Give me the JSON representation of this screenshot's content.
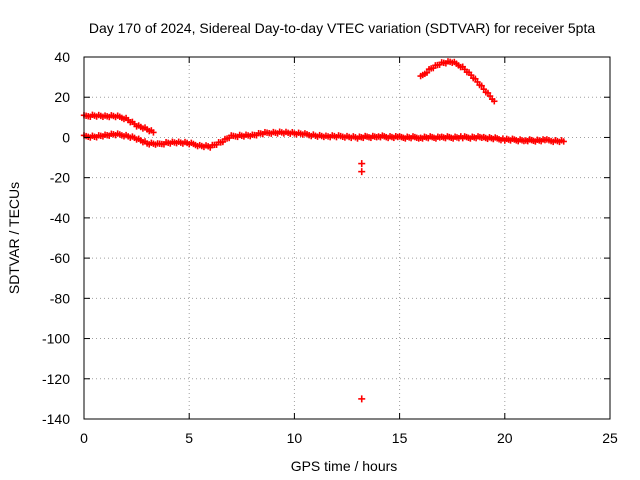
{
  "chart_data": {
    "type": "scatter",
    "title": "Day 170 of 2024, Sidereal Day-to-day VTEC variation (SDTVAR) for receiver 5pta",
    "xlabel": "GPS time / hours",
    "ylabel": "SDTVAR / TECUs",
    "xlim": [
      0,
      25
    ],
    "ylim": [
      -140,
      40
    ],
    "xticks": [
      0,
      5,
      10,
      15,
      20,
      25
    ],
    "yticks": [
      40,
      20,
      0,
      -20,
      -40,
      -60,
      -80,
      -100,
      -120,
      -140
    ],
    "grid": true,
    "marker": "plus",
    "color": "#ff0000",
    "series": [
      {
        "name": "main-band",
        "points": [
          [
            0.0,
            0.5
          ],
          [
            0.5,
            0.5
          ],
          [
            1.0,
            1.0
          ],
          [
            1.5,
            1.5
          ],
          [
            2.0,
            1.0
          ],
          [
            2.5,
            -0.5
          ],
          [
            3.0,
            -3.0
          ],
          [
            3.5,
            -3.5
          ],
          [
            4.0,
            -2.5
          ],
          [
            4.5,
            -2.5
          ],
          [
            5.0,
            -3.0
          ],
          [
            5.5,
            -4.0
          ],
          [
            6.0,
            -4.5
          ],
          [
            6.5,
            -2.5
          ],
          [
            7.0,
            0.5
          ],
          [
            7.5,
            1.0
          ],
          [
            8.0,
            1.0
          ],
          [
            8.5,
            2.0
          ],
          [
            9.0,
            2.5
          ],
          [
            9.5,
            2.5
          ],
          [
            10.0,
            2.0
          ],
          [
            10.5,
            1.5
          ],
          [
            11.0,
            1.0
          ],
          [
            11.5,
            0.5
          ],
          [
            12.0,
            0.5
          ],
          [
            12.5,
            0.5
          ],
          [
            13.0,
            0.0
          ],
          [
            14.0,
            0.5
          ],
          [
            15.0,
            0.0
          ],
          [
            16.0,
            0.0
          ],
          [
            17.0,
            0.0
          ],
          [
            18.0,
            0.0
          ],
          [
            19.0,
            0.0
          ],
          [
            20.0,
            -1.0
          ],
          [
            21.0,
            -1.5
          ],
          [
            22.0,
            -1.5
          ],
          [
            22.8,
            -2.0
          ]
        ]
      },
      {
        "name": "upper-early-band",
        "points": [
          [
            0.0,
            10.5
          ],
          [
            0.5,
            11.0
          ],
          [
            1.0,
            10.5
          ],
          [
            1.5,
            10.5
          ],
          [
            2.0,
            9.5
          ],
          [
            2.5,
            6.0
          ],
          [
            3.0,
            4.0
          ],
          [
            3.3,
            2.5
          ]
        ]
      },
      {
        "name": "arc",
        "points": [
          [
            16.0,
            30.0
          ],
          [
            16.5,
            34.5
          ],
          [
            17.0,
            37.0
          ],
          [
            17.5,
            37.5
          ],
          [
            18.0,
            35.0
          ],
          [
            18.5,
            30.0
          ],
          [
            19.0,
            24.0
          ],
          [
            19.5,
            18.0
          ]
        ]
      },
      {
        "name": "outliers",
        "points": [
          [
            13.2,
            -13.0
          ],
          [
            13.2,
            -17.0
          ],
          [
            13.2,
            -130.0
          ]
        ]
      }
    ]
  }
}
